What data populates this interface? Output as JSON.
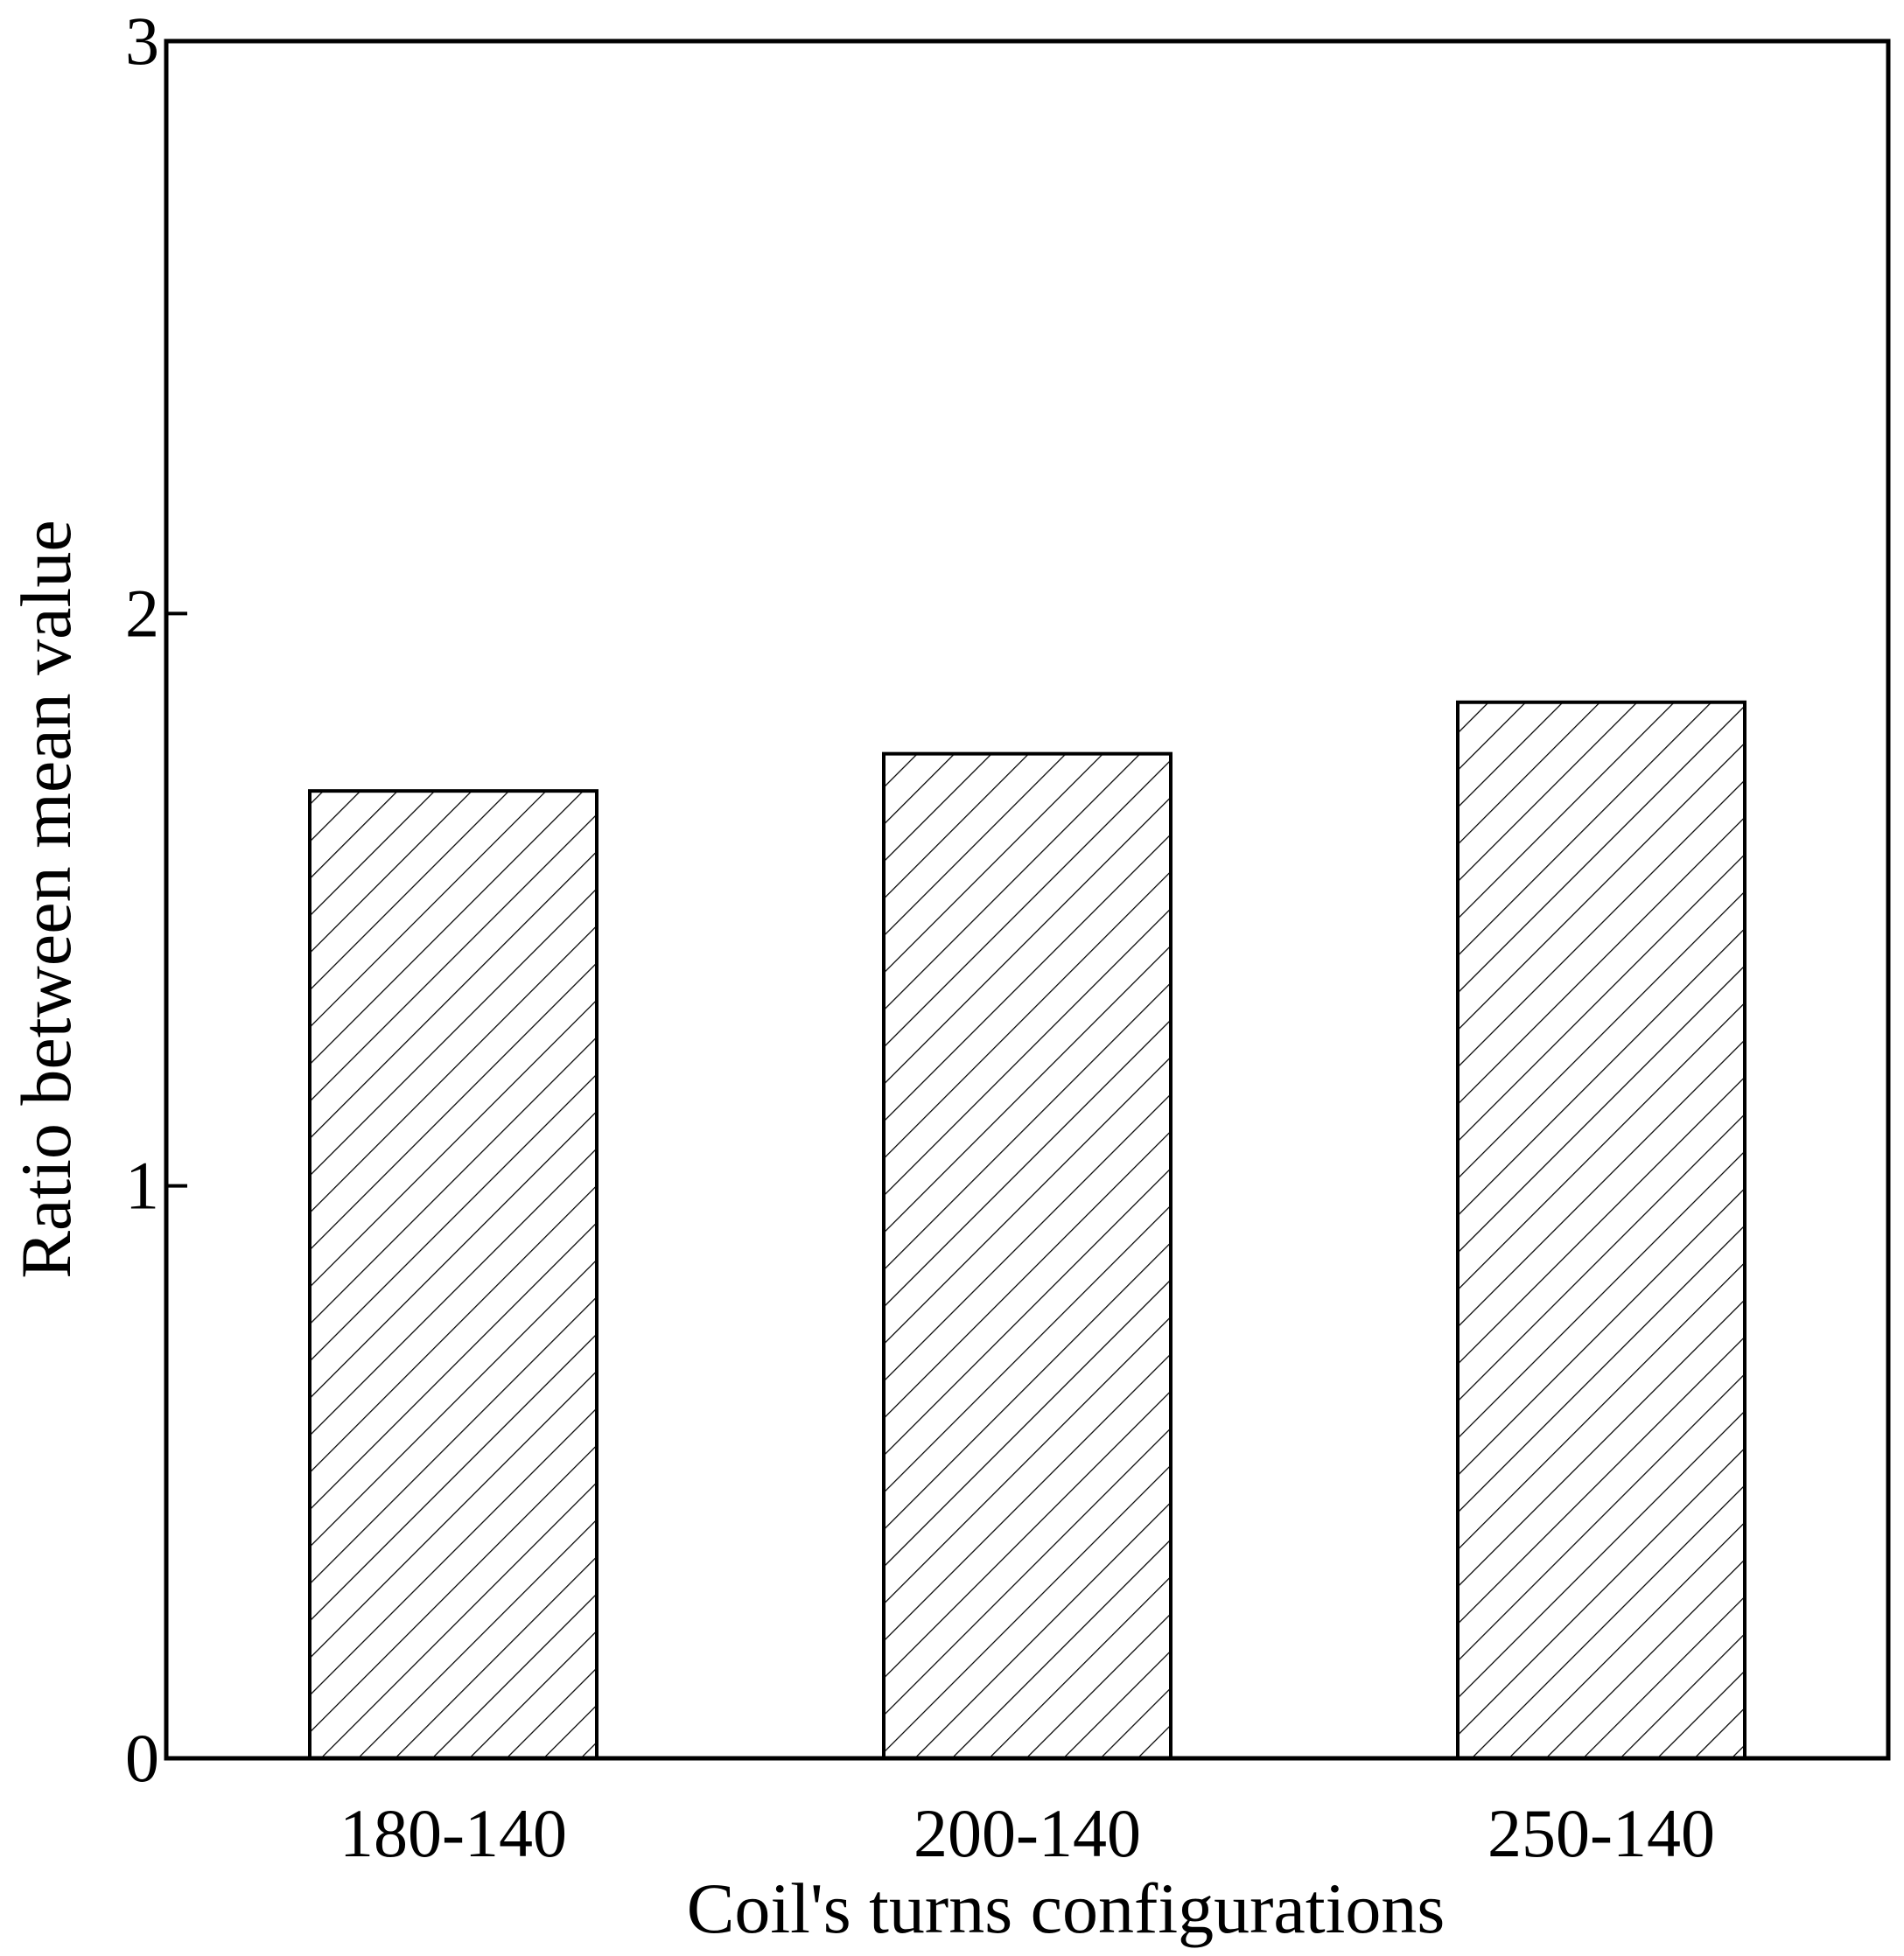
{
  "chart_data": {
    "type": "bar",
    "categories": [
      "180-140",
      "200-140",
      "250-140"
    ],
    "values": [
      1.69,
      1.755,
      1.845
    ],
    "xlabel": "Coil's turns configurations",
    "ylabel": "Ratio between mean value",
    "ylim": [
      0,
      3
    ],
    "yticks": [
      "0",
      "1",
      "2",
      "3"
    ],
    "bar_fill": "hatched",
    "bar_color": "#000000",
    "grid": false,
    "legend": "none"
  }
}
